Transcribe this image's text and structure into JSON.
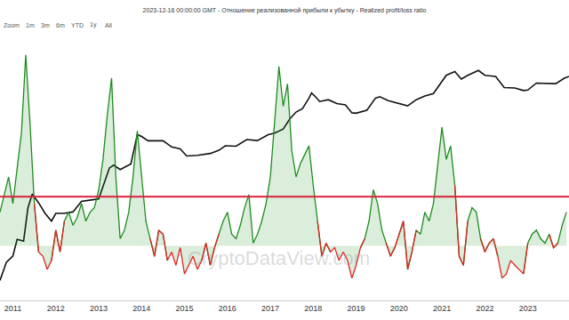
{
  "chart_data": {
    "type": "line",
    "title": "2023-12-16 00:00:00 GMT - Отношение реализованной прибыли к убытку - Realized profit/loss ratio",
    "zoom_buttons": [
      "Zoom",
      "1m",
      "3m",
      "6m",
      "YTD",
      "1y",
      "All"
    ],
    "watermark": "CryptoDataView.com",
    "xlim": [
      2010.7,
      2023.96
    ],
    "xticks": [
      2011,
      2012,
      2013,
      2014,
      2015,
      2016,
      2017,
      2018,
      2019,
      2020,
      2021,
      2022,
      2023
    ],
    "ylim": [
      0.016,
      620000
    ],
    "y2lim": [
      0.24,
      240
    ],
    "log": "y",
    "grid": false,
    "tick_labels": "x",
    "reference_line": {
      "value": 3.6,
      "axis": "y2",
      "color": "#d9213a"
    },
    "series": [
      {
        "type": "line",
        "color": "#111111",
        "x": [
          2010.7,
          2010.85,
          2011.0,
          2011.1,
          2011.25,
          2011.35,
          2011.45,
          2011.5,
          2011.6,
          2011.75,
          2011.9,
          2012.0,
          2012.2,
          2012.4,
          2012.6,
          2012.8,
          2013.0,
          2013.25,
          2013.35,
          2013.5,
          2013.75,
          2013.9,
          2014.0,
          2014.15,
          2014.4,
          2014.5,
          2014.7,
          2014.9,
          2015.05,
          2015.3,
          2015.6,
          2015.8,
          2015.95,
          2016.2,
          2016.45,
          2016.7,
          2016.95,
          2017.1,
          2017.3,
          2017.45,
          2017.6,
          2017.75,
          2017.9,
          2017.96,
          2018.05,
          2018.15,
          2018.35,
          2018.55,
          2018.75,
          2018.9,
          2019.0,
          2019.25,
          2019.45,
          2019.55,
          2019.75,
          2019.95,
          2020.2,
          2020.4,
          2020.6,
          2020.8,
          2020.95,
          2021.1,
          2021.3,
          2021.45,
          2021.6,
          2021.85,
          2022.0,
          2022.25,
          2022.45,
          2022.7,
          2022.9,
          2023.0,
          2023.2,
          2023.45,
          2023.65,
          2023.85,
          2023.96
        ],
        "values": [
          0.06,
          0.2,
          0.3,
          0.9,
          0.8,
          7,
          18,
          15,
          10,
          5,
          3,
          5,
          5,
          5.5,
          11,
          12,
          13,
          100,
          120,
          90,
          130,
          900,
          800,
          600,
          600,
          600,
          400,
          350,
          220,
          230,
          260,
          320,
          430,
          420,
          650,
          610,
          900,
          1000,
          1300,
          2500,
          4000,
          5000,
          10000,
          14000,
          11000,
          8000,
          9000,
          7000,
          6400,
          3800,
          3700,
          4500,
          10000,
          11000,
          8500,
          7200,
          6000,
          9000,
          11500,
          13500,
          25000,
          45000,
          58000,
          35000,
          45000,
          62000,
          45000,
          42000,
          20000,
          19500,
          16500,
          17000,
          27000,
          27000,
          26000,
          37000,
          42000
        ]
      },
      {
        "type": "area",
        "axis": "y2",
        "color": "#1e8c1e",
        "color_below": "#e02424",
        "baseline": 1,
        "x": [
          2010.7,
          2010.8,
          2010.9,
          2011.0,
          2011.1,
          2011.2,
          2011.3,
          2011.4,
          2011.5,
          2011.6,
          2011.7,
          2011.8,
          2011.9,
          2012.0,
          2012.1,
          2012.2,
          2012.3,
          2012.4,
          2012.5,
          2012.6,
          2012.7,
          2012.8,
          2012.9,
          2013.0,
          2013.1,
          2013.2,
          2013.3,
          2013.4,
          2013.5,
          2013.6,
          2013.7,
          2013.8,
          2013.9,
          2014.0,
          2014.1,
          2014.2,
          2014.3,
          2014.4,
          2014.5,
          2014.6,
          2014.7,
          2014.8,
          2014.9,
          2015.0,
          2015.1,
          2015.2,
          2015.3,
          2015.4,
          2015.5,
          2015.6,
          2015.7,
          2015.8,
          2015.9,
          2016.0,
          2016.1,
          2016.2,
          2016.3,
          2016.4,
          2016.5,
          2016.6,
          2016.7,
          2016.8,
          2016.9,
          2017.0,
          2017.1,
          2017.2,
          2017.3,
          2017.4,
          2017.5,
          2017.6,
          2017.7,
          2017.8,
          2017.9,
          2018.0,
          2018.1,
          2018.2,
          2018.3,
          2018.4,
          2018.5,
          2018.6,
          2018.7,
          2018.8,
          2018.9,
          2019.0,
          2019.1,
          2019.2,
          2019.3,
          2019.4,
          2019.5,
          2019.6,
          2019.7,
          2019.8,
          2019.9,
          2020.0,
          2020.1,
          2020.2,
          2020.3,
          2020.4,
          2020.5,
          2020.6,
          2020.7,
          2020.8,
          2020.9,
          2021.0,
          2021.1,
          2021.2,
          2021.3,
          2021.4,
          2021.5,
          2021.6,
          2021.7,
          2021.8,
          2021.9,
          2022.0,
          2022.1,
          2022.2,
          2022.3,
          2022.4,
          2022.5,
          2022.6,
          2022.7,
          2022.8,
          2022.9,
          2023.0,
          2023.1,
          2023.2,
          2023.3,
          2023.4,
          2023.5,
          2023.6,
          2023.7,
          2023.8,
          2023.9
        ],
        "values": [
          2.4,
          3.8,
          6.0,
          3.0,
          7.6,
          19,
          145,
          24,
          3.0,
          0.85,
          0.76,
          0.54,
          0.68,
          1.5,
          0.85,
          1.9,
          2.4,
          1.7,
          2.1,
          3.0,
          1.9,
          2.4,
          2.7,
          4.3,
          9.5,
          30,
          79,
          6.0,
          1.2,
          1.5,
          2.4,
          6.0,
          20,
          6.0,
          1.9,
          1.2,
          0.76,
          1.5,
          1.35,
          0.68,
          0.85,
          0.6,
          0.95,
          0.48,
          0.6,
          0.76,
          0.54,
          0.68,
          1.07,
          0.6,
          0.95,
          1.35,
          1.9,
          2.4,
          1.35,
          1.2,
          1.7,
          2.7,
          3.8,
          1.07,
          1.35,
          1.9,
          3.0,
          6.0,
          24,
          107,
          38,
          68,
          12,
          6.0,
          8.5,
          10.7,
          13.5,
          4.8,
          1.9,
          0.76,
          1.07,
          0.85,
          0.95,
          0.68,
          0.85,
          0.68,
          0.43,
          0.6,
          0.95,
          1.2,
          1.9,
          4.3,
          3.0,
          1.5,
          1.07,
          0.76,
          0.95,
          1.35,
          1.9,
          0.54,
          0.85,
          1.5,
          1.35,
          2.4,
          1.9,
          3.0,
          7.6,
          22,
          9.5,
          13.5,
          4.8,
          0.76,
          0.6,
          1.9,
          2.7,
          2.4,
          1.2,
          0.85,
          1.07,
          1.2,
          0.76,
          0.43,
          0.48,
          0.68,
          0.6,
          0.54,
          0.48,
          1.07,
          1.35,
          1.5,
          1.2,
          1.07,
          1.35,
          0.95,
          1.07,
          1.7,
          2.4
        ]
      }
    ]
  }
}
